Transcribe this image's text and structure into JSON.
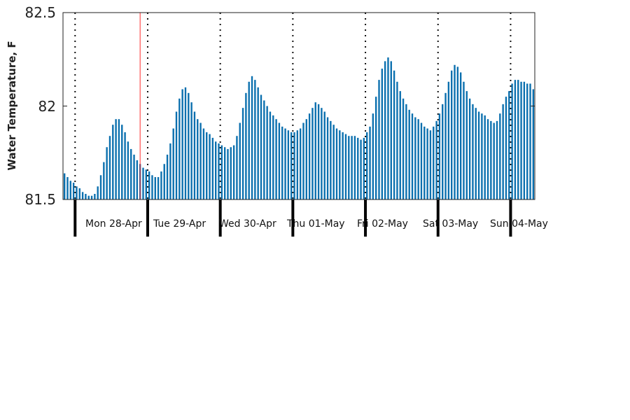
{
  "chart_data": {
    "type": "bar",
    "title": "",
    "xlabel": "",
    "ylabel": "Water Temperature, F",
    "ylim": [
      81.5,
      82.5
    ],
    "yticks": [
      "82.5",
      "82",
      "81.5"
    ],
    "grid": false,
    "legend": "none",
    "bar_color": "#0a6fae",
    "marker_color": "#ff2a2a",
    "day_labels": [
      "Mon 28-Apr",
      "Tue 29-Apr",
      "Wed 30-Apr",
      "Thu 01-May",
      "Fri 02-May",
      "Sat 03-May",
      "Sun 04-May"
    ],
    "hours_per_day": 24,
    "series": [
      {
        "values": [
          81.64,
          81.62,
          81.6,
          81.59,
          81.57,
          81.56,
          81.54,
          81.53,
          81.52,
          81.52,
          81.53,
          81.57,
          81.63,
          81.7,
          81.78,
          81.84,
          81.9,
          81.93,
          81.93,
          81.9,
          81.86,
          81.81,
          81.77,
          81.74,
          81.71,
          81.69,
          81.67,
          81.66,
          81.65,
          81.63,
          81.62,
          81.62,
          81.65,
          81.69,
          81.74,
          81.8,
          81.88,
          81.97,
          82.04,
          82.09,
          82.1,
          82.07,
          82.02,
          81.97,
          81.93,
          81.91,
          81.88,
          81.86,
          81.85,
          81.83,
          81.81,
          81.8,
          81.79,
          81.78,
          81.77,
          81.78,
          81.79,
          81.84,
          81.91,
          81.99,
          82.07,
          82.13,
          82.16,
          82.14,
          82.1,
          82.06,
          82.03,
          82.0,
          81.97,
          81.95,
          81.93,
          81.91,
          81.89,
          81.88,
          81.87,
          81.86,
          81.86,
          81.87,
          81.88,
          81.91,
          81.93,
          81.96,
          81.99,
          82.02,
          82.01,
          81.99,
          81.97,
          81.94,
          81.92,
          81.9,
          81.88,
          81.87,
          81.86,
          81.85,
          81.84,
          81.84,
          81.84,
          81.83,
          81.82,
          81.83,
          81.86,
          81.89,
          81.96,
          82.05,
          82.14,
          82.2,
          82.24,
          82.26,
          82.24,
          82.19,
          82.13,
          82.08,
          82.04,
          82.01,
          81.98,
          81.96,
          81.94,
          81.93,
          81.91,
          81.89,
          81.88,
          81.87,
          81.89,
          81.92,
          81.96,
          82.01,
          82.07,
          82.13,
          82.19,
          82.22,
          82.21,
          82.18,
          82.13,
          82.08,
          82.04,
          82.01,
          81.99,
          81.97,
          81.96,
          81.95,
          81.93,
          81.92,
          81.91,
          81.92,
          81.96,
          82.01,
          82.05,
          82.08,
          82.12,
          82.14,
          82.14,
          82.13,
          82.13,
          82.12,
          82.12,
          82.09
        ]
      }
    ]
  }
}
